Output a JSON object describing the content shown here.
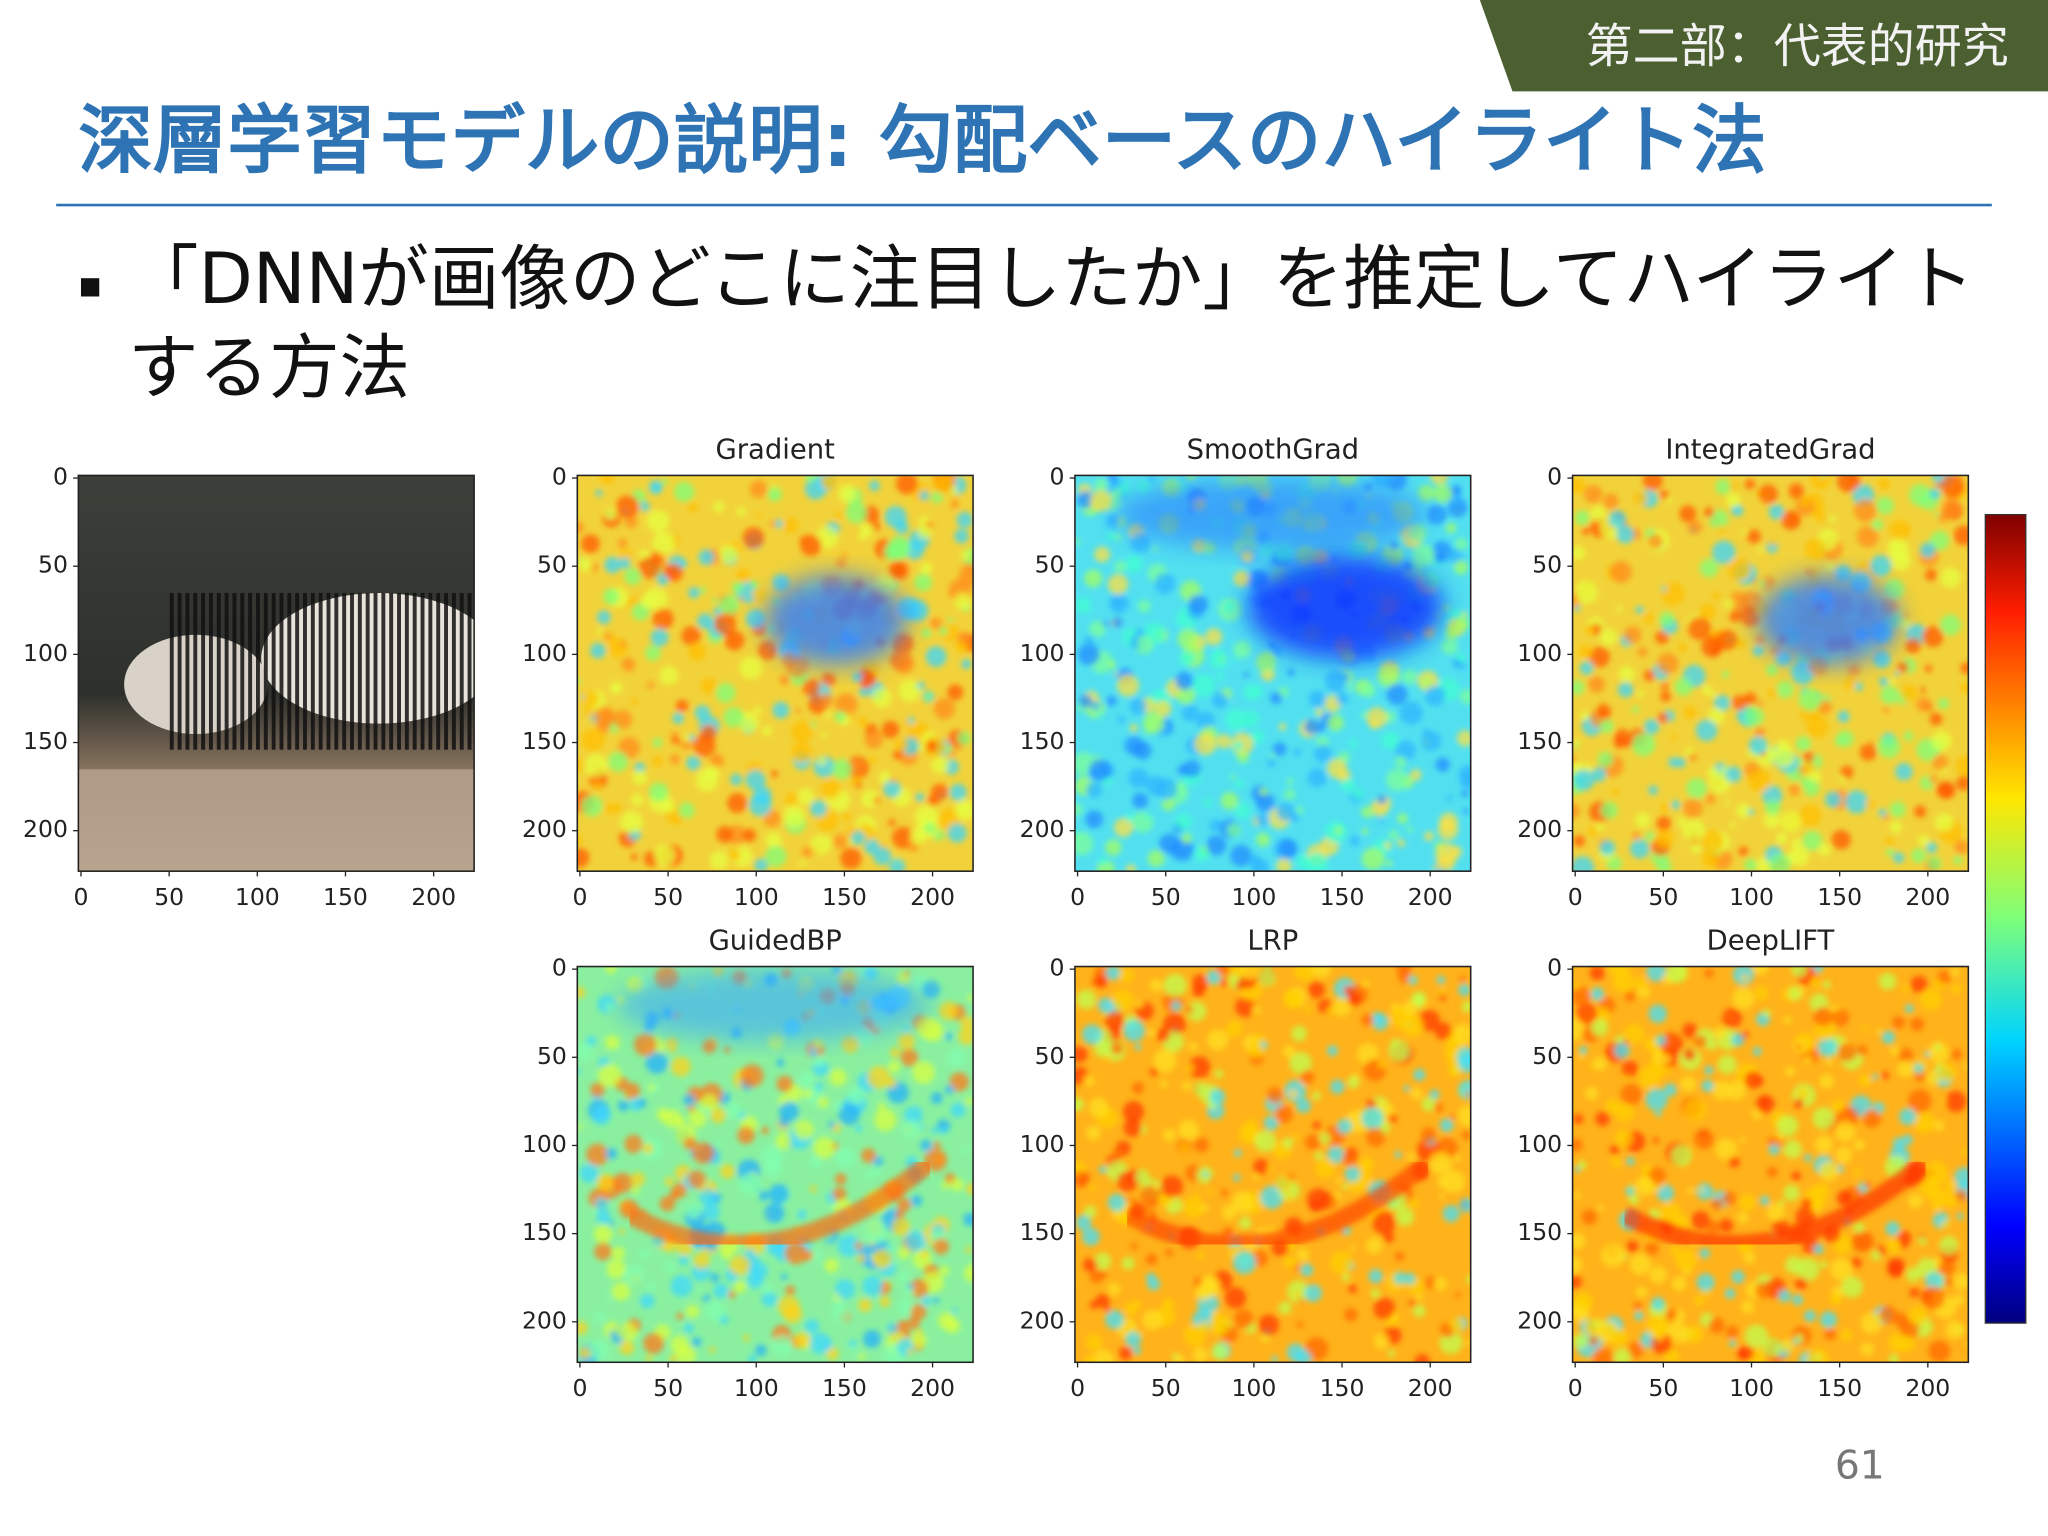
{
  "header": {
    "section": "第二部：代表的研究",
    "title": "深層学習モデルの説明: 勾配ベースのハイライト法"
  },
  "bullet": {
    "lines": [
      "「DNNが画像のどこに注目したか」を推定してハイライト",
      "する方法"
    ]
  },
  "figure": {
    "ticks": [
      0,
      50,
      100,
      150,
      200
    ],
    "panels": [
      {
        "title": "Gradient"
      },
      {
        "title": "SmoothGrad"
      },
      {
        "title": "IntegratedGrad"
      },
      {
        "title": "GuidedBP"
      },
      {
        "title": "LRP"
      },
      {
        "title": "DeepLIFT"
      }
    ]
  },
  "page_number": 61
}
